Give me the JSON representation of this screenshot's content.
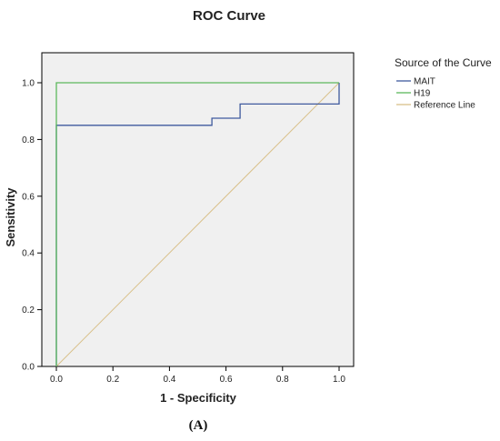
{
  "chart_data": {
    "type": "line",
    "title": "ROC Curve",
    "xlabel": "1 - Specificity",
    "ylabel": "Sensitivity",
    "xlim": [
      0,
      1.0
    ],
    "ylim": [
      0,
      1.0
    ],
    "x_ticks": [
      "0.0",
      "0.2",
      "0.4",
      "0.6",
      "0.8",
      "1.0"
    ],
    "y_ticks": [
      "0.0",
      "0.2",
      "0.4",
      "0.6",
      "0.8",
      "1.0"
    ],
    "grid": false,
    "legend_position": "right",
    "legend_title": "Source of the Curve",
    "series": [
      {
        "name": "MAIT",
        "color": "#3f5a9e",
        "points": [
          [
            0,
            0
          ],
          [
            0,
            0.85
          ],
          [
            0.55,
            0.85
          ],
          [
            0.55,
            0.875
          ],
          [
            0.65,
            0.875
          ],
          [
            0.65,
            0.925
          ],
          [
            1.0,
            0.925
          ],
          [
            1.0,
            1.0
          ]
        ]
      },
      {
        "name": "H19",
        "color": "#5cb85c",
        "points": [
          [
            0,
            0
          ],
          [
            0,
            1.0
          ],
          [
            1.0,
            1.0
          ]
        ]
      },
      {
        "name": "Reference Line",
        "color": "#d9c08a",
        "points": [
          [
            0,
            0
          ],
          [
            1.0,
            1.0
          ]
        ]
      }
    ],
    "background_color": "#f0f0f0"
  },
  "caption": "(A)"
}
